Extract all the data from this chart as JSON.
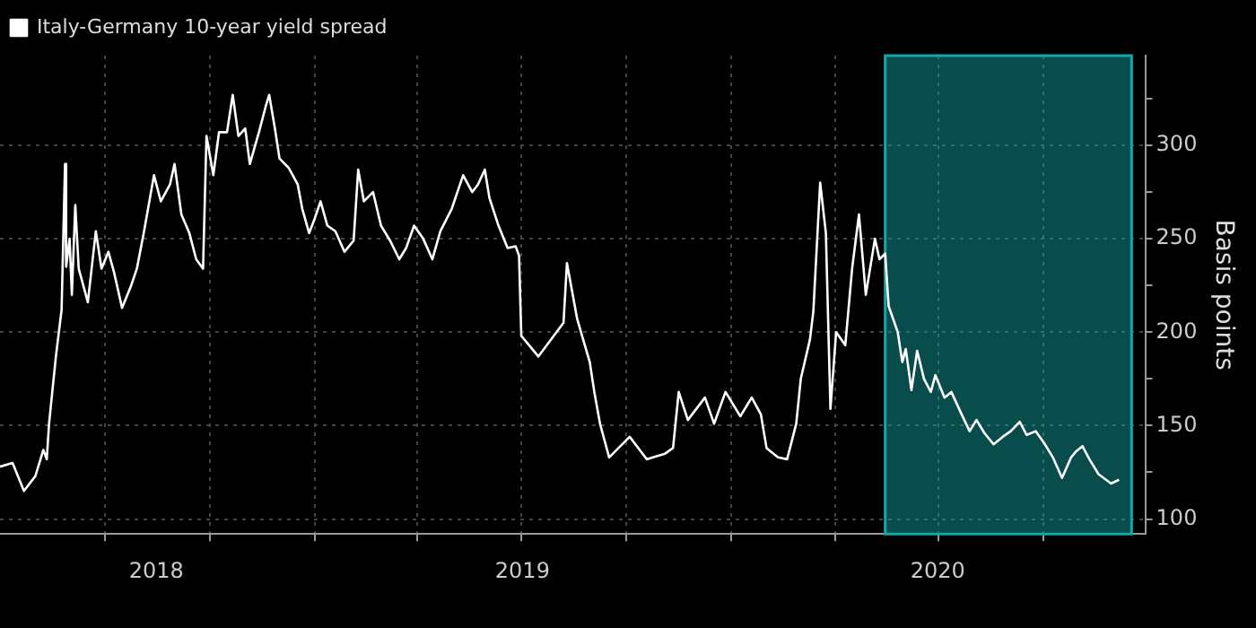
{
  "chart_data": {
    "type": "line",
    "ylabel": "Basis points",
    "legend": "top left",
    "grid": true,
    "marker": "none",
    "line_style": "solid",
    "xlim": [
      "2018-03-31",
      "2020-12-29"
    ],
    "xticks": [
      {
        "value": "2018-07-01",
        "label": null
      },
      {
        "value": "2018-08-15",
        "label": "2018"
      },
      {
        "value": "2018-10-01",
        "label": null
      },
      {
        "value": "2019-01-01",
        "label": null
      },
      {
        "value": "2019-04-01",
        "label": null
      },
      {
        "value": "2019-07-01",
        "label": null
      },
      {
        "value": "2019-07-02",
        "label": "2019"
      },
      {
        "value": "2019-10-01",
        "label": null
      },
      {
        "value": "2020-01-01",
        "label": null
      },
      {
        "value": "2020-04-01",
        "label": null
      },
      {
        "value": "2020-06-30",
        "label": "2020"
      },
      {
        "value": "2020-07-01",
        "label": null
      },
      {
        "value": "2020-10-01",
        "label": null
      }
    ],
    "ylim": [
      92,
      348
    ],
    "yticks": [
      100,
      {
        "value": 125,
        "label": null
      },
      150,
      {
        "value": 175,
        "label": null
      },
      200,
      {
        "value": 225,
        "label": null
      },
      250,
      {
        "value": 275,
        "label": null
      },
      300,
      {
        "value": 325,
        "label": null
      }
    ],
    "bands": [
      {
        "axis": "x",
        "from": "2020-05-15",
        "to": "2020-12-17",
        "color": "#12a8a8"
      }
    ],
    "x": [
      "2018-03-31",
      "2018-04-11",
      "2018-04-21",
      "2018-05-01",
      "2018-05-08",
      "2018-05-11",
      "2018-05-13",
      "2018-05-19",
      "2018-05-24",
      "2018-05-27",
      "2018-05-28",
      "2018-05-31",
      "2018-06-02",
      "2018-06-05",
      "2018-06-08",
      "2018-06-16",
      "2018-06-23",
      "2018-06-28",
      "2018-07-04",
      "2018-07-09",
      "2018-07-16",
      "2018-07-24",
      "2018-07-29",
      "2018-08-04",
      "2018-08-13",
      "2018-08-19",
      "2018-08-27",
      "2018-08-31",
      "2018-09-06",
      "2018-09-13",
      "2018-09-19",
      "2018-09-25",
      "2018-09-28",
      "2018-10-04",
      "2018-10-09",
      "2018-10-16",
      "2018-10-21",
      "2018-10-26",
      "2018-11-01",
      "2018-11-05",
      "2018-11-13",
      "2018-11-19",
      "2018-11-22",
      "2018-11-27",
      "2018-12-01",
      "2018-12-09",
      "2018-12-17",
      "2018-12-21",
      "2018-12-27",
      "2019-01-01",
      "2019-01-06",
      "2019-01-12",
      "2019-01-19",
      "2019-01-27",
      "2019-02-04",
      "2019-02-08",
      "2019-02-13",
      "2019-02-21",
      "2019-02-28",
      "2019-03-08",
      "2019-03-16",
      "2019-03-22",
      "2019-03-29",
      "2019-04-06",
      "2019-04-14",
      "2019-04-21",
      "2019-05-01",
      "2019-05-11",
      "2019-05-19",
      "2019-05-24",
      "2019-05-30",
      "2019-06-03",
      "2019-06-11",
      "2019-06-19",
      "2019-06-26",
      "2019-06-29",
      "2019-07-01",
      "2019-07-16",
      "2019-08-07",
      "2019-08-10",
      "2019-08-19",
      "2019-08-30",
      "2019-09-03",
      "2019-09-08",
      "2019-09-16",
      "2019-10-04",
      "2019-10-19",
      "2019-11-04",
      "2019-11-11",
      "2019-11-16",
      "2019-11-24",
      "2019-12-09",
      "2019-12-17",
      "2019-12-27",
      "2020-01-09",
      "2020-01-19",
      "2020-01-27",
      "2020-02-01",
      "2020-02-11",
      "2020-02-19",
      "2020-02-27",
      "2020-03-02",
      "2020-03-10",
      "2020-03-13",
      "2020-03-19",
      "2020-03-24",
      "2020-03-28",
      "2020-04-02",
      "2020-04-10",
      "2020-04-16",
      "2020-04-22",
      "2020-04-28",
      "2020-05-06",
      "2020-05-10",
      "2020-05-15",
      "2020-05-18",
      "2020-05-26",
      "2020-05-30",
      "2020-06-02",
      "2020-06-07",
      "2020-06-12",
      "2020-06-18",
      "2020-06-24",
      "2020-06-28",
      "2020-07-06",
      "2020-07-12",
      "2020-07-21",
      "2020-07-28",
      "2020-08-03",
      "2020-08-10",
      "2020-08-18",
      "2020-08-26",
      "2020-09-02",
      "2020-09-10",
      "2020-09-16",
      "2020-09-24",
      "2020-10-01",
      "2020-10-09",
      "2020-10-17",
      "2020-10-25",
      "2020-10-29",
      "2020-11-04",
      "2020-11-10",
      "2020-11-18",
      "2020-11-29",
      "2020-12-06"
    ],
    "series": [
      {
        "name": "Italy-Germany 10-year yield spread",
        "color": "#ffffff",
        "values": [
          128,
          130,
          115,
          123,
          137,
          132,
          151,
          187,
          212,
          290,
          235,
          250,
          220,
          268,
          234,
          216,
          254,
          234,
          243,
          232,
          213,
          225,
          234,
          253,
          284,
          270,
          279,
          290,
          263,
          253,
          239,
          234,
          305,
          284,
          307,
          307,
          327,
          305,
          309,
          290,
          307,
          321,
          327,
          309,
          293,
          288,
          279,
          266,
          253,
          261,
          270,
          257,
          254,
          243,
          249,
          287,
          270,
          275,
          257,
          249,
          239,
          245,
          257,
          250,
          239,
          254,
          266,
          284,
          275,
          279,
          287,
          272,
          257,
          245,
          246,
          241,
          198,
          187,
          205,
          237,
          207,
          184,
          168,
          151,
          133,
          144,
          132,
          135,
          138,
          168,
          153,
          165,
          151,
          168,
          155,
          165,
          156,
          138,
          133,
          132,
          151,
          175,
          196,
          211,
          280,
          253,
          159,
          200,
          193,
          234,
          263,
          220,
          250,
          239,
          242,
          214,
          200,
          184,
          191,
          169,
          190,
          175,
          168,
          177,
          165,
          168,
          156,
          147,
          153,
          146,
          140,
          144,
          147,
          152,
          145,
          147,
          141,
          133,
          122,
          133,
          136,
          139,
          132,
          124,
          119,
          121
        ]
      }
    ]
  }
}
